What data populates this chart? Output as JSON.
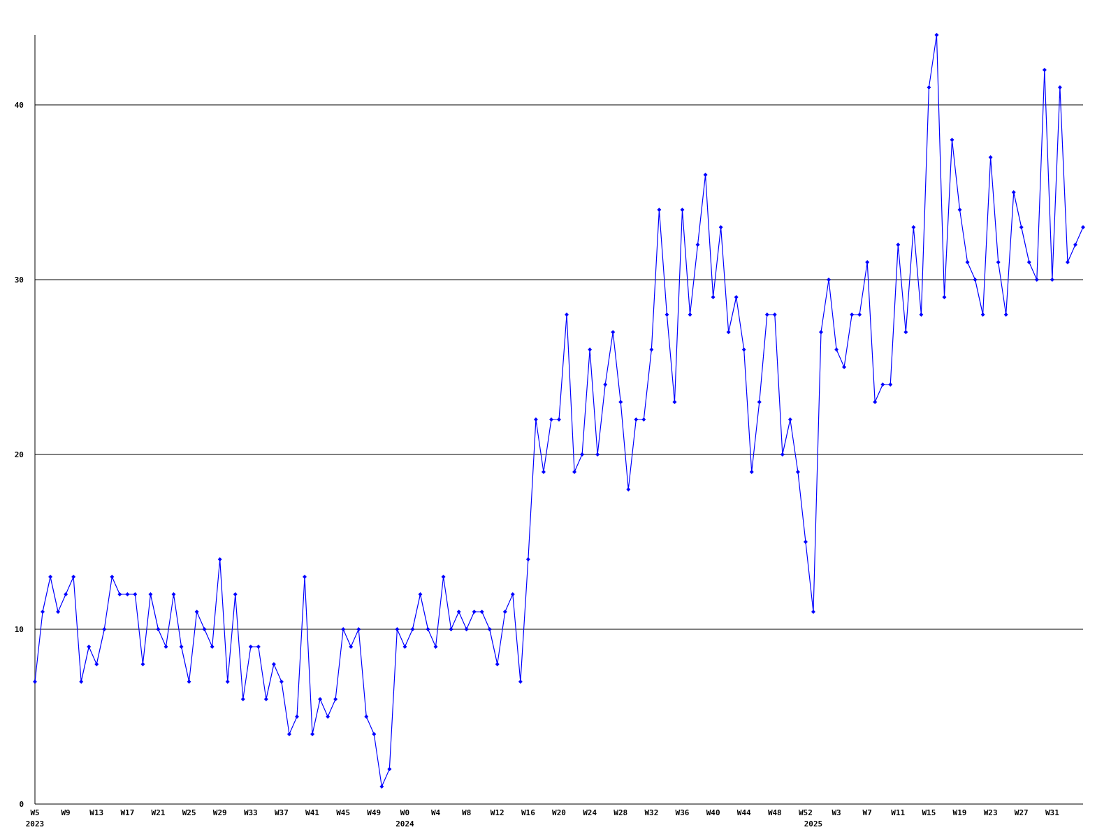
{
  "chart_data": {
    "type": "line",
    "categories": [
      "W5\n2023",
      null,
      null,
      null,
      "W9",
      null,
      null,
      null,
      "W13",
      null,
      null,
      null,
      "W17",
      null,
      null,
      null,
      "W21",
      null,
      null,
      null,
      "W25",
      null,
      null,
      null,
      "W29",
      null,
      null,
      null,
      "W33",
      null,
      null,
      null,
      "W37",
      null,
      null,
      null,
      "W41",
      null,
      null,
      null,
      "W45",
      null,
      null,
      null,
      "W49",
      null,
      null,
      null,
      "W0\n2024",
      null,
      null,
      null,
      "W4",
      null,
      null,
      null,
      "W8",
      null,
      null,
      null,
      "W12",
      null,
      null,
      null,
      "W16",
      null,
      null,
      null,
      "W20",
      null,
      null,
      null,
      "W24",
      null,
      null,
      null,
      "W28",
      null,
      null,
      null,
      "W32",
      null,
      null,
      null,
      "W36",
      null,
      null,
      null,
      "W40",
      null,
      null,
      null,
      "W44",
      null,
      null,
      null,
      "W48",
      null,
      null,
      null,
      "W52",
      "\n2025",
      null,
      null,
      "W3",
      null,
      null,
      null,
      "W7",
      null,
      null,
      null,
      "W11",
      null,
      null,
      null,
      "W15",
      null,
      null,
      null,
      "W19",
      null,
      null,
      null,
      "W23",
      null,
      null,
      null,
      "W27",
      null,
      null,
      null,
      "W31",
      null,
      null,
      null,
      null
    ],
    "series": [
      {
        "color": "#0000ff",
        "values": [
          7,
          11,
          13,
          11,
          12,
          13,
          7,
          9,
          8,
          10,
          13,
          12,
          12,
          12,
          8,
          12,
          10,
          9,
          12,
          9,
          7,
          11,
          10,
          9,
          14,
          7,
          12,
          6,
          9,
          9,
          6,
          8,
          7,
          4,
          5,
          13,
          4,
          6,
          5,
          6,
          10,
          9,
          10,
          5,
          4,
          1,
          2,
          10,
          9,
          10,
          12,
          10,
          9,
          13,
          10,
          11,
          10,
          11,
          11,
          10,
          8,
          11,
          12,
          7,
          14,
          22,
          19,
          22,
          22,
          28,
          19,
          20,
          26,
          20,
          24,
          27,
          23,
          18,
          22,
          22,
          26,
          34,
          28,
          23,
          34,
          28,
          32,
          36,
          29,
          33,
          27,
          29,
          26,
          19,
          23,
          28,
          28,
          20,
          22,
          19,
          15,
          11,
          27,
          30,
          26,
          25,
          28,
          28,
          31,
          23,
          24,
          24,
          32,
          27,
          33,
          28,
          41,
          44,
          29,
          38,
          34,
          31,
          30,
          28,
          37,
          31,
          28,
          35,
          33,
          31,
          30,
          42,
          30,
          41,
          31,
          32,
          33
        ]
      }
    ],
    "ylim": [
      0,
      44
    ],
    "yticks": [
      0,
      10,
      20,
      30,
      40
    ],
    "grid": "y",
    "marker": "diamond",
    "line_style": "solid"
  }
}
